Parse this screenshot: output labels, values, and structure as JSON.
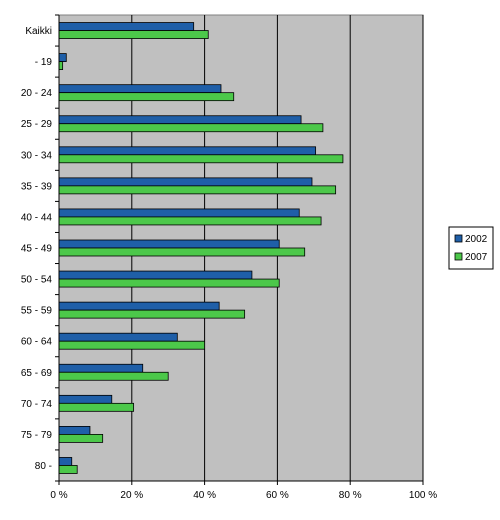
{
  "chart_data": {
    "type": "bar",
    "orientation": "horizontal",
    "categories": [
      "Kaikki",
      "- 19",
      "20 - 24",
      "25 - 29",
      "30 - 34",
      "35 - 39",
      "40 - 44",
      "45 - 49",
      "50 - 54",
      "55 - 59",
      "60 - 64",
      "65 - 69",
      "70 - 74",
      "75 - 79",
      "80 -"
    ],
    "series": [
      {
        "name": "2002",
        "color": "#1f5fa8",
        "values": [
          37,
          2,
          44.5,
          66.5,
          70.5,
          69.5,
          66,
          60.5,
          53,
          44,
          32.5,
          23,
          14.5,
          8.5,
          3.5
        ]
      },
      {
        "name": "2007",
        "color": "#4cc84a",
        "values": [
          41,
          1,
          48,
          72.5,
          78,
          76,
          72,
          67.5,
          60.5,
          51,
          40,
          30,
          20.5,
          12,
          5
        ]
      }
    ],
    "x_ticks": [
      "0 %",
      "20 %",
      "40 %",
      "60 %",
      "80 %",
      "100 %"
    ],
    "xlim": [
      0,
      100
    ],
    "title": "",
    "xlabel": "",
    "ylabel": "",
    "grid": true,
    "plot_background": "#c0c0c0",
    "legend_position": "right"
  }
}
